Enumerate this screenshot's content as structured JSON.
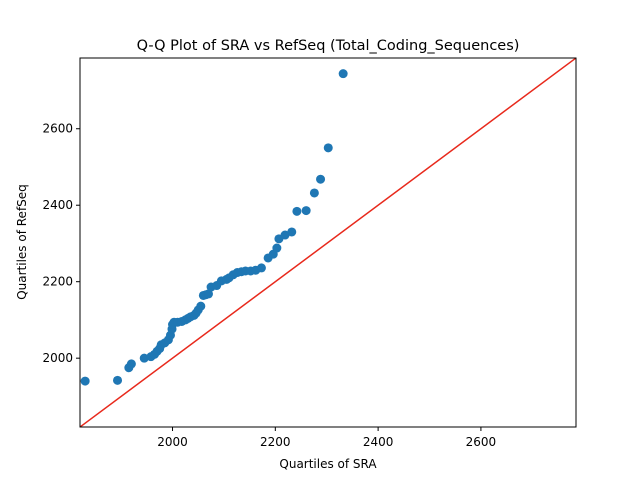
{
  "chart_data": {
    "type": "scatter",
    "title": "Q-Q Plot of SRA vs RefSeq (Total_Coding_Sequences)",
    "xlabel": "Quartiles of SRA",
    "ylabel": "Quartiles of RefSeq",
    "xlim": [
      1820,
      2785
    ],
    "ylim": [
      1820,
      2785
    ],
    "xticks": [
      2000,
      2200,
      2400,
      2600
    ],
    "yticks": [
      2000,
      2200,
      2400,
      2600
    ],
    "grid": false,
    "point_color": "#1f77b4",
    "reference_line": {
      "from": [
        1820,
        1820
      ],
      "to": [
        2785,
        2785
      ],
      "color": "#e8291c"
    },
    "points": [
      [
        1830,
        1940
      ],
      [
        1893,
        1942
      ],
      [
        1915,
        1975
      ],
      [
        1920,
        1985
      ],
      [
        1945,
        2000
      ],
      [
        1958,
        2004
      ],
      [
        1965,
        2010
      ],
      [
        1970,
        2018
      ],
      [
        1975,
        2025
      ],
      [
        1978,
        2035
      ],
      [
        1985,
        2040
      ],
      [
        1992,
        2048
      ],
      [
        1996,
        2060
      ],
      [
        1999,
        2076
      ],
      [
        2000,
        2088
      ],
      [
        2003,
        2094
      ],
      [
        2010,
        2094
      ],
      [
        2018,
        2096
      ],
      [
        2025,
        2100
      ],
      [
        2030,
        2104
      ],
      [
        2035,
        2108
      ],
      [
        2042,
        2112
      ],
      [
        2046,
        2118
      ],
      [
        2050,
        2126
      ],
      [
        2055,
        2136
      ],
      [
        2060,
        2164
      ],
      [
        2065,
        2166
      ],
      [
        2070,
        2168
      ],
      [
        2075,
        2186
      ],
      [
        2086,
        2190
      ],
      [
        2095,
        2202
      ],
      [
        2105,
        2206
      ],
      [
        2110,
        2210
      ],
      [
        2118,
        2218
      ],
      [
        2126,
        2224
      ],
      [
        2134,
        2226
      ],
      [
        2142,
        2228
      ],
      [
        2152,
        2228
      ],
      [
        2162,
        2230
      ],
      [
        2173,
        2236
      ],
      [
        2186,
        2262
      ],
      [
        2196,
        2272
      ],
      [
        2203,
        2288
      ],
      [
        2207,
        2312
      ],
      [
        2219,
        2322
      ],
      [
        2232,
        2330
      ],
      [
        2242,
        2384
      ],
      [
        2260,
        2386
      ],
      [
        2276,
        2432
      ],
      [
        2288,
        2468
      ],
      [
        2303,
        2550
      ],
      [
        2332,
        2744
      ]
    ]
  }
}
